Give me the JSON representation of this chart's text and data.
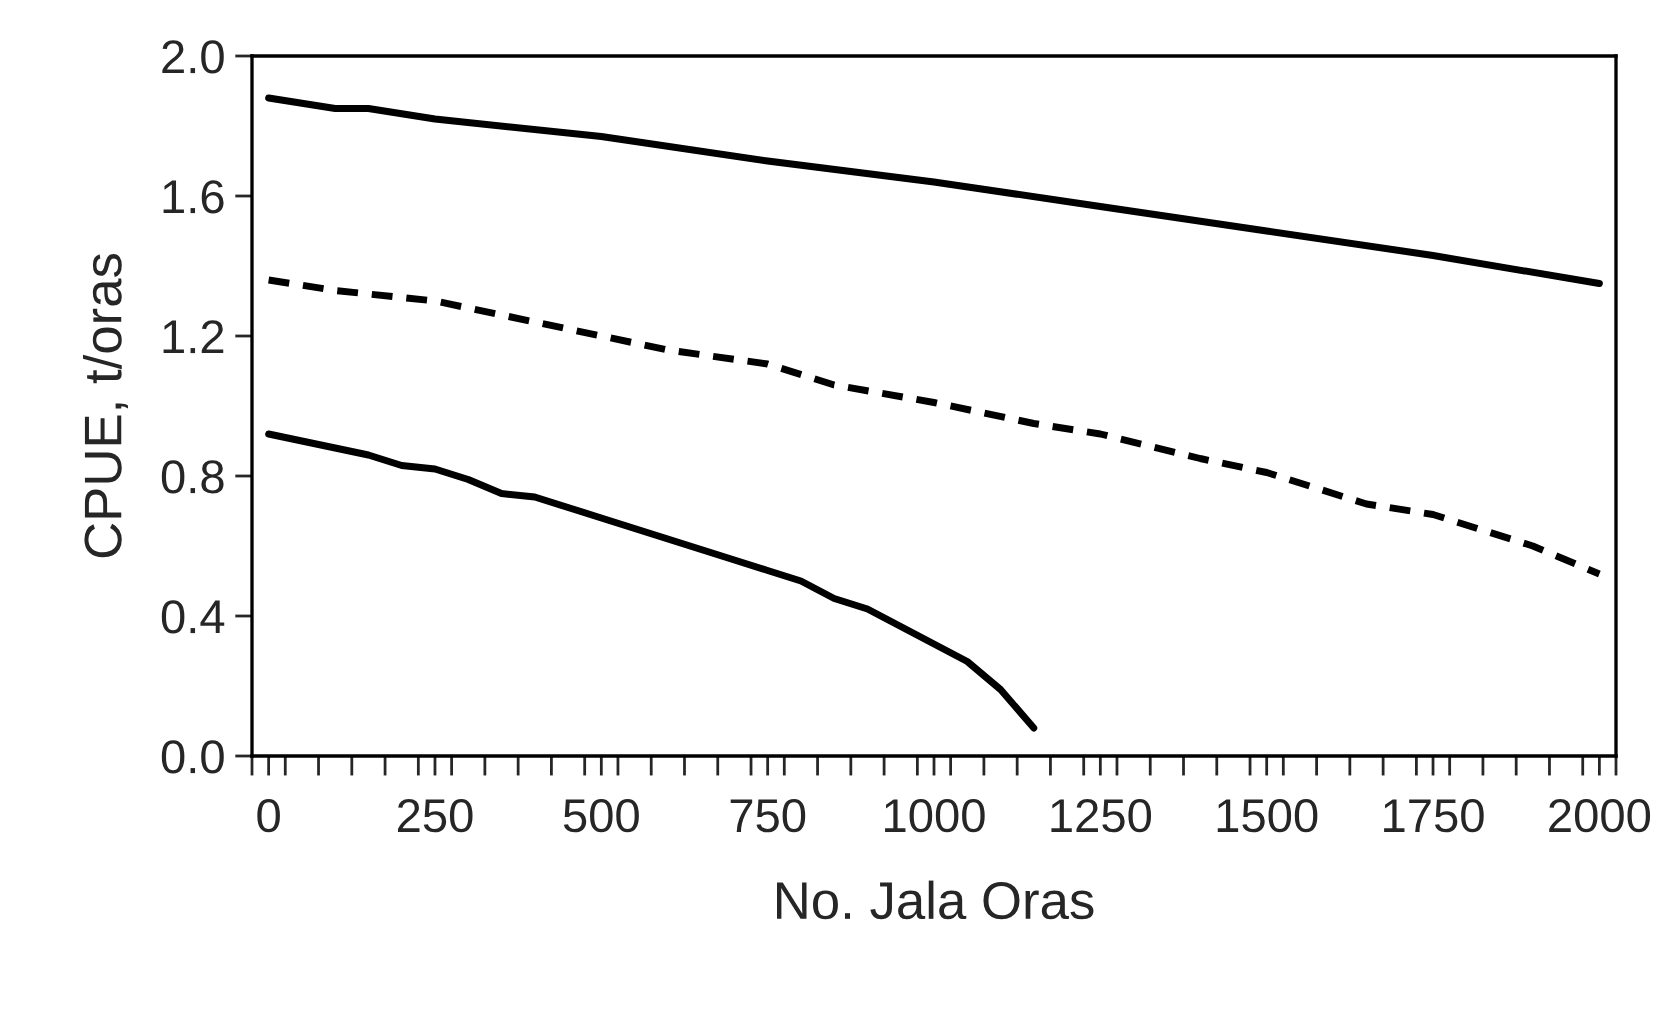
{
  "chart_data": {
    "type": "line",
    "xlabel": "No. Jala Oras",
    "ylabel": "CPUE, t/oras",
    "series": [
      {
        "color": "#000000",
        "line_style": "solid",
        "x": [
          0,
          100,
          150,
          250,
          500,
          750,
          1000,
          1250,
          1500,
          1750,
          2000
        ],
        "values": [
          1.88,
          1.85,
          1.85,
          1.82,
          1.77,
          1.7,
          1.64,
          1.57,
          1.5,
          1.43,
          1.35
        ]
      },
      {
        "color": "#000000",
        "line_style": "dashed",
        "x": [
          0,
          100,
          250,
          350,
          500,
          600,
          750,
          850,
          1000,
          1150,
          1250,
          1400,
          1500,
          1650,
          1750,
          1900,
          2000
        ],
        "values": [
          1.36,
          1.33,
          1.3,
          1.26,
          1.2,
          1.16,
          1.12,
          1.06,
          1.01,
          0.95,
          0.92,
          0.85,
          0.81,
          0.72,
          0.69,
          0.6,
          0.52
        ]
      },
      {
        "color": "#000000",
        "line_style": "solid",
        "x": [
          0,
          50,
          100,
          150,
          200,
          250,
          300,
          350,
          400,
          450,
          500,
          550,
          600,
          650,
          700,
          750,
          800,
          850,
          900,
          950,
          1000,
          1050,
          1100,
          1150
        ],
        "values": [
          0.92,
          0.9,
          0.88,
          0.86,
          0.83,
          0.82,
          0.79,
          0.75,
          0.74,
          0.71,
          0.68,
          0.65,
          0.62,
          0.59,
          0.56,
          0.53,
          0.5,
          0.45,
          0.42,
          0.37,
          0.32,
          0.27,
          0.19,
          0.08
        ]
      }
    ],
    "xlim": [
      -25,
      2025
    ],
    "xticks": [
      0,
      250,
      500,
      750,
      1000,
      1250,
      1500,
      1750,
      2000,
      {
        "value": -25,
        "label": null
      },
      {
        "value": 25,
        "label": null
      },
      {
        "value": 75,
        "label": null
      },
      {
        "value": 125,
        "label": null
      },
      {
        "value": 175,
        "label": null
      },
      {
        "value": 225,
        "label": null
      },
      {
        "value": 275,
        "label": null
      },
      {
        "value": 325,
        "label": null
      },
      {
        "value": 375,
        "label": null
      },
      {
        "value": 425,
        "label": null
      },
      {
        "value": 475,
        "label": null
      },
      {
        "value": 525,
        "label": null
      },
      {
        "value": 575,
        "label": null
      },
      {
        "value": 625,
        "label": null
      },
      {
        "value": 675,
        "label": null
      },
      {
        "value": 725,
        "label": null
      },
      {
        "value": 775,
        "label": null
      },
      {
        "value": 825,
        "label": null
      },
      {
        "value": 875,
        "label": null
      },
      {
        "value": 925,
        "label": null
      },
      {
        "value": 975,
        "label": null
      },
      {
        "value": 1025,
        "label": null
      },
      {
        "value": 1075,
        "label": null
      },
      {
        "value": 1125,
        "label": null
      },
      {
        "value": 1175,
        "label": null
      },
      {
        "value": 1225,
        "label": null
      },
      {
        "value": 1275,
        "label": null
      },
      {
        "value": 1325,
        "label": null
      },
      {
        "value": 1375,
        "label": null
      },
      {
        "value": 1425,
        "label": null
      },
      {
        "value": 1475,
        "label": null
      },
      {
        "value": 1525,
        "label": null
      },
      {
        "value": 1575,
        "label": null
      },
      {
        "value": 1625,
        "label": null
      },
      {
        "value": 1675,
        "label": null
      },
      {
        "value": 1725,
        "label": null
      },
      {
        "value": 1775,
        "label": null
      },
      {
        "value": 1825,
        "label": null
      },
      {
        "value": 1875,
        "label": null
      },
      {
        "value": 1925,
        "label": null
      },
      {
        "value": 1975,
        "label": null
      },
      {
        "value": 2025,
        "label": null
      }
    ],
    "ylim": [
      0,
      2.0
    ],
    "yticks": [
      {
        "value": 0,
        "label": "0.0"
      },
      {
        "value": 0.4,
        "label": "0.4"
      },
      {
        "value": 0.8,
        "label": "0.8"
      },
      {
        "value": 1.2,
        "label": "1.2"
      },
      {
        "value": 1.6,
        "label": "1.6"
      },
      {
        "value": 2.0,
        "label": "2.0"
      }
    ],
    "grid": false,
    "legend": false,
    "marker": "none"
  }
}
